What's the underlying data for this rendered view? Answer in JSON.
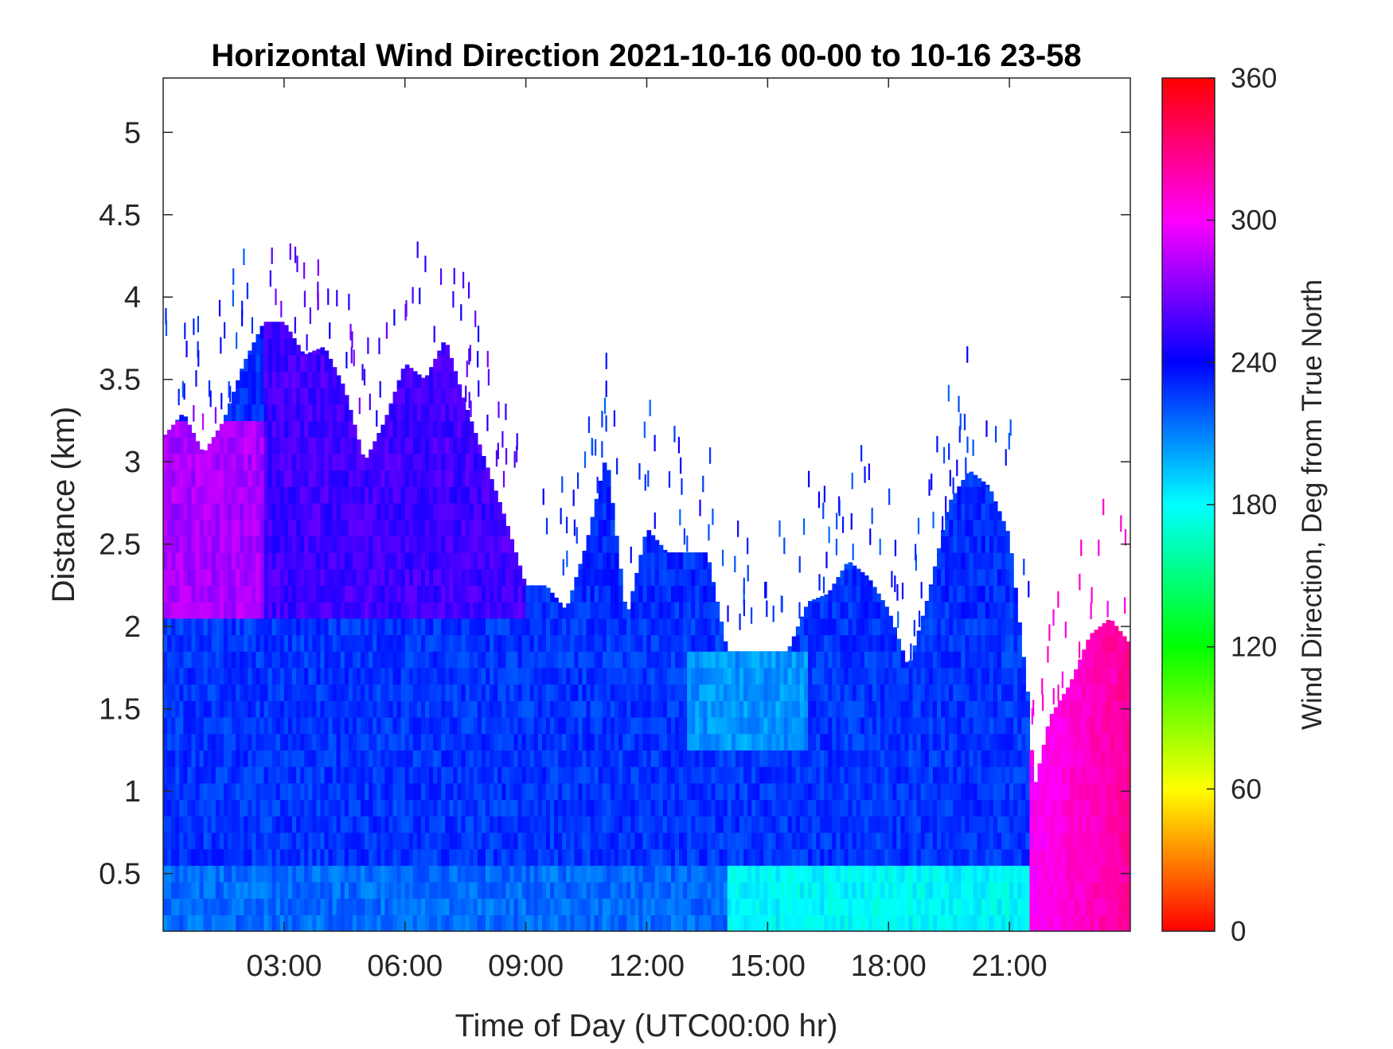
{
  "chart_data": {
    "type": "heatmap",
    "title": "Horizontal Wind Direction 2021-10-16 00-00 to 10-16 23-58",
    "xlabel": "Time of Day (UTC00:00 hr)",
    "ylabel": "Distance (km)",
    "x_tick_values": [
      3,
      6,
      9,
      12,
      15,
      18,
      21
    ],
    "x_tick_labels": [
      "03:00",
      "06:00",
      "09:00",
      "12:00",
      "15:00",
      "18:00",
      "21:00"
    ],
    "xlim": [
      0,
      24
    ],
    "y_tick_values": [
      0.5,
      1,
      1.5,
      2,
      2.5,
      3,
      3.5,
      4,
      4.5,
      5
    ],
    "y_tick_labels": [
      "0.5",
      "1",
      "1.5",
      "2",
      "2.5",
      "3",
      "3.5",
      "4",
      "4.5",
      "5"
    ],
    "ylim": [
      0.15,
      5.33
    ],
    "colorbar": {
      "label": "Wind Direction, Deg from True North",
      "range": [
        0,
        360
      ],
      "tick_values": [
        0,
        60,
        120,
        180,
        240,
        300,
        360
      ],
      "tick_labels": [
        "0",
        "60",
        "120",
        "180",
        "240",
        "300",
        "360"
      ],
      "colormap": "hsv"
    },
    "data_top_height_km": [
      {
        "t": 0.0,
        "h": 3.15
      },
      {
        "t": 0.5,
        "h": 3.3
      },
      {
        "t": 1.0,
        "h": 3.05
      },
      {
        "t": 1.5,
        "h": 3.25
      },
      {
        "t": 2.0,
        "h": 3.6
      },
      {
        "t": 2.5,
        "h": 3.85
      },
      {
        "t": 3.0,
        "h": 3.85
      },
      {
        "t": 3.5,
        "h": 3.65
      },
      {
        "t": 4.0,
        "h": 3.7
      },
      {
        "t": 4.5,
        "h": 3.45
      },
      {
        "t": 5.0,
        "h": 3.0
      },
      {
        "t": 5.5,
        "h": 3.25
      },
      {
        "t": 6.0,
        "h": 3.6
      },
      {
        "t": 6.5,
        "h": 3.5
      },
      {
        "t": 7.0,
        "h": 3.75
      },
      {
        "t": 7.5,
        "h": 3.35
      },
      {
        "t": 8.0,
        "h": 3.0
      },
      {
        "t": 8.5,
        "h": 2.65
      },
      {
        "t": 9.0,
        "h": 2.25
      },
      {
        "t": 9.5,
        "h": 2.25
      },
      {
        "t": 10.0,
        "h": 2.1
      },
      {
        "t": 10.5,
        "h": 2.5
      },
      {
        "t": 11.0,
        "h": 3.05
      },
      {
        "t": 11.5,
        "h": 2.05
      },
      {
        "t": 12.0,
        "h": 2.6
      },
      {
        "t": 12.5,
        "h": 2.45
      },
      {
        "t": 13.0,
        "h": 2.45
      },
      {
        "t": 13.5,
        "h": 2.45
      },
      {
        "t": 14.0,
        "h": 1.85
      },
      {
        "t": 14.5,
        "h": 1.85
      },
      {
        "t": 15.0,
        "h": 1.85
      },
      {
        "t": 15.5,
        "h": 1.85
      },
      {
        "t": 16.0,
        "h": 2.15
      },
      {
        "t": 16.5,
        "h": 2.2
      },
      {
        "t": 17.0,
        "h": 2.4
      },
      {
        "t": 17.5,
        "h": 2.3
      },
      {
        "t": 18.0,
        "h": 2.1
      },
      {
        "t": 18.5,
        "h": 1.75
      },
      {
        "t": 19.0,
        "h": 2.2
      },
      {
        "t": 19.5,
        "h": 2.75
      },
      {
        "t": 20.0,
        "h": 2.95
      },
      {
        "t": 20.5,
        "h": 2.85
      },
      {
        "t": 21.0,
        "h": 2.55
      },
      {
        "t": 21.5,
        "h": 1.5
      },
      {
        "t": 21.6,
        "h": 1.0
      },
      {
        "t": 22.0,
        "h": 1.45
      },
      {
        "t": 22.5,
        "h": 1.65
      },
      {
        "t": 23.0,
        "h": 1.95
      },
      {
        "t": 23.5,
        "h": 2.05
      },
      {
        "t": 23.98,
        "h": 1.9
      }
    ],
    "direction_by_layer_deg": [
      {
        "t_from": 0,
        "t_to": 21.5,
        "h_from": 0.15,
        "h_to": 0.6,
        "deg": 215
      },
      {
        "t_from": 14,
        "t_to": 21.5,
        "h_from": 0.15,
        "h_to": 0.6,
        "deg": 180
      },
      {
        "t_from": 0,
        "t_to": 21.5,
        "h_from": 0.6,
        "h_to": 2.1,
        "deg": 228
      },
      {
        "t_from": 13,
        "t_to": 16,
        "h_from": 1.3,
        "h_to": 1.9,
        "deg": 205
      },
      {
        "t_from": 0,
        "t_to": 2.5,
        "h_from": 2.1,
        "h_to": 3.3,
        "deg": 280
      },
      {
        "t_from": 2.5,
        "t_to": 9,
        "h_from": 2.1,
        "h_to": 4.0,
        "deg": 255
      },
      {
        "t_from": 21.5,
        "t_to": 24,
        "h_from": 0.15,
        "h_to": 2.1,
        "deg": 305
      }
    ]
  }
}
